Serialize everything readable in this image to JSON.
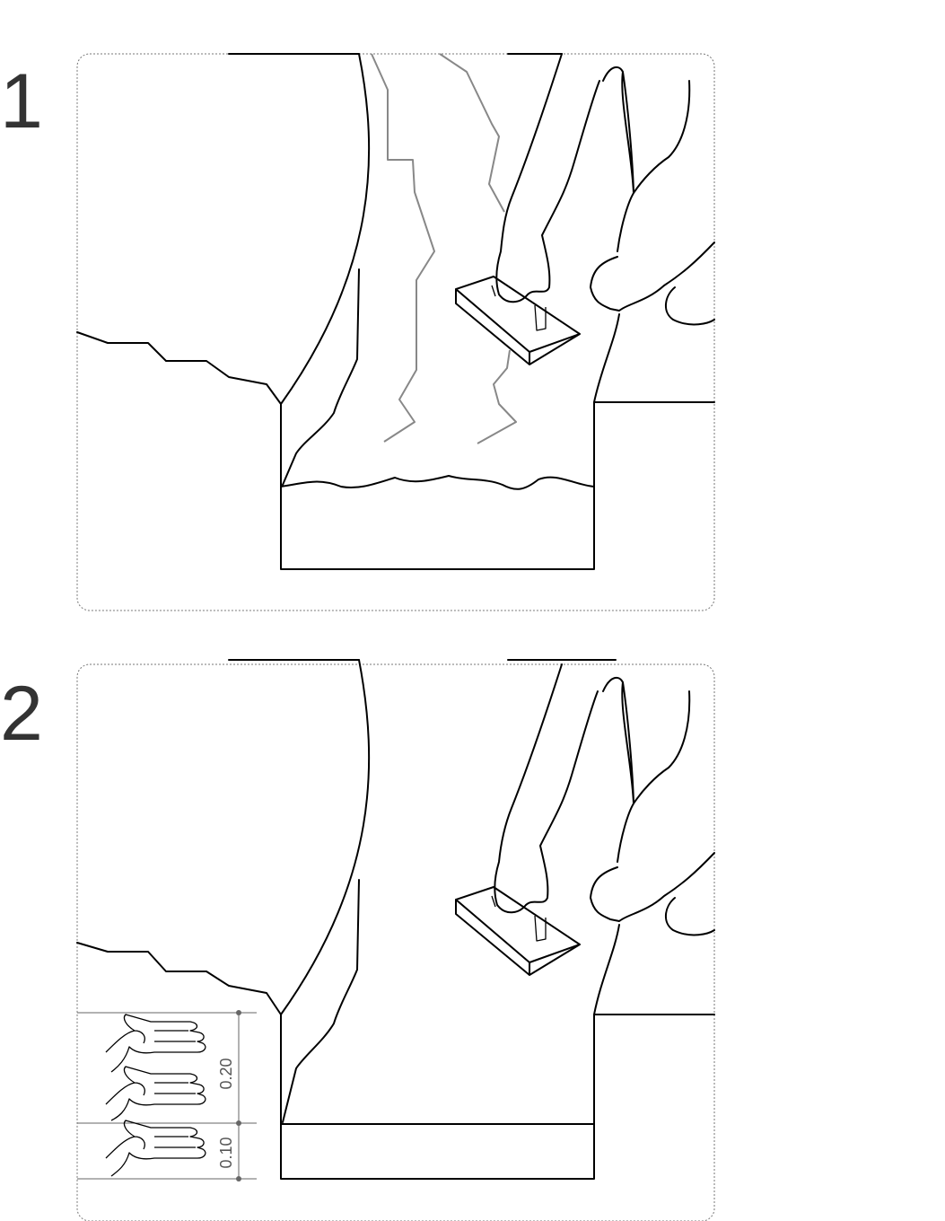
{
  "steps": [
    {
      "number": "1"
    },
    {
      "number": "2"
    }
  ],
  "dimensions": {
    "upper_label": "0.20",
    "lower_label": "0.10"
  }
}
